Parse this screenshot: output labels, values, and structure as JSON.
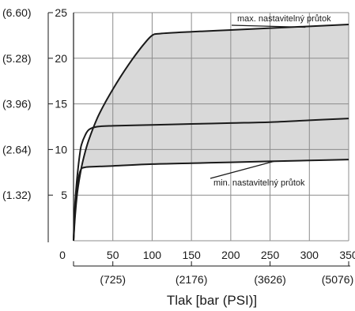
{
  "chart_data": {
    "type": "area",
    "xlabel": "Tlak [bar (PSI)]",
    "xlim": [
      0,
      350
    ],
    "ylim": [
      0,
      25
    ],
    "x_ticks": [
      0,
      50,
      100,
      150,
      200,
      250,
      300,
      350
    ],
    "x_ticks_secondary": [
      {
        "x": 50,
        "label": "(725)"
      },
      {
        "x": 150,
        "label": "(2176)"
      },
      {
        "x": 250,
        "label": "(3626)"
      },
      {
        "x": 350,
        "label": "(5076)"
      }
    ],
    "y_ticks": [
      5,
      10,
      15,
      20,
      25
    ],
    "y_ticks_secondary": [
      {
        "y": 5,
        "label": "(1.32)"
      },
      {
        "y": 10,
        "label": "(2.64)"
      },
      {
        "y": 15,
        "label": "(3.96)"
      },
      {
        "y": 20,
        "label": "(5.28)"
      },
      {
        "y": 25,
        "label": "(6.60)"
      }
    ],
    "grid": true,
    "series": [
      {
        "name": "max. nastavitelný průtok",
        "x": [
          0,
          2,
          5,
          10,
          15,
          20,
          30,
          40,
          50,
          60,
          70,
          80,
          90,
          100,
          110,
          150,
          200,
          250,
          300,
          350
        ],
        "y": [
          0,
          2.7,
          5.4,
          8.0,
          9.8,
          11.2,
          13.4,
          15.1,
          16.6,
          18.0,
          19.3,
          20.5,
          21.6,
          22.5,
          22.7,
          22.9,
          23.1,
          23.3,
          23.5,
          23.7
        ]
      },
      {
        "name": "",
        "x": [
          0,
          1,
          2,
          4,
          6,
          8,
          10,
          15,
          20,
          30,
          50,
          100,
          150,
          200,
          250,
          300,
          350
        ],
        "y": [
          0,
          2.5,
          4.2,
          6.4,
          8.1,
          9.5,
          10.5,
          11.6,
          12.2,
          12.5,
          12.6,
          12.7,
          12.8,
          12.9,
          13.0,
          13.2,
          13.4
        ]
      },
      {
        "name": "min. nastavitelný průtok",
        "x": [
          0,
          1,
          2,
          4,
          6,
          8,
          10,
          12,
          15,
          20,
          50,
          100,
          150,
          200,
          250,
          300,
          350
        ],
        "y": [
          0,
          1.8,
          3.2,
          5.3,
          6.7,
          7.5,
          7.9,
          8.0,
          8.05,
          8.1,
          8.2,
          8.4,
          8.5,
          8.6,
          8.7,
          8.8,
          8.9
        ]
      }
    ],
    "shaded_band": "between max. nastavitelný průtok and min. nastavitelný průtok",
    "colors": {
      "band": "#d9d9d9",
      "line": "#1a1a1a",
      "grid": "#8c8c8c"
    },
    "annotations": [
      {
        "text": "max. nastavitelný průtok",
        "points_to_x": 295,
        "points_to_y": 23.4
      },
      {
        "text": "min. nastavitelný průtok",
        "points_to_x": 255,
        "points_to_y": 8.7
      }
    ]
  }
}
